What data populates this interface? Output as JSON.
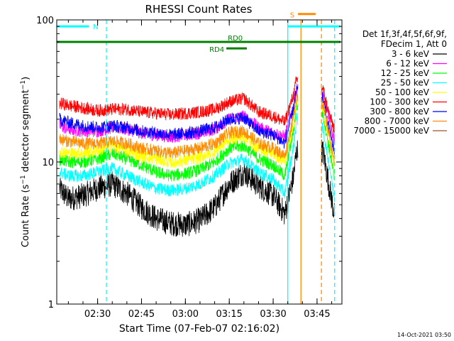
{
  "chart_data": {
    "type": "line",
    "title": "RHESSI Count Rates",
    "xlabel": "Start Time (07-Feb-07 02:16:02)",
    "ylabel": "Count Rate (s⁻¹ detector segment⁻¹)",
    "ylabel_main": "Count Rate (s",
    "ylabel_sup1": "−1",
    "ylabel_mid": " detector segment",
    "ylabel_sup2": "−1",
    "ylabel_end": ")",
    "y_scale": "log",
    "ylim": [
      1,
      100
    ],
    "yticks": [
      {
        "value": 1,
        "label": "1"
      },
      {
        "value": 10,
        "label": "10"
      },
      {
        "value": 100,
        "label": "100"
      }
    ],
    "xlim": [
      "02:16:02",
      "03:53:30"
    ],
    "xticks": [
      "02:30",
      "02:45",
      "03:00",
      "03:15",
      "03:30",
      "03:45"
    ],
    "legend_position": "right",
    "legend_header": [
      "Det 1f,3f,4f,5f,6f,9f,",
      "FDecim 1, Att 0"
    ],
    "footer_timestamp": "14-Oct-2021 03:50",
    "series": [
      {
        "name": "3 - 6 keV",
        "color": "#000000",
        "values": [
          {
            "t": "02:17",
            "v": 6.5
          },
          {
            "t": "02:20",
            "v": 5.5
          },
          {
            "t": "02:25",
            "v": 5.8
          },
          {
            "t": "02:30",
            "v": 6.5
          },
          {
            "t": "02:35",
            "v": 7.0
          },
          {
            "t": "02:40",
            "v": 6.0
          },
          {
            "t": "02:45",
            "v": 4.8
          },
          {
            "t": "02:50",
            "v": 4.0
          },
          {
            "t": "02:55",
            "v": 3.7
          },
          {
            "t": "03:00",
            "v": 3.6
          },
          {
            "t": "03:05",
            "v": 3.9
          },
          {
            "t": "03:10",
            "v": 4.8
          },
          {
            "t": "03:15",
            "v": 7.0
          },
          {
            "t": "03:20",
            "v": 8.5
          },
          {
            "t": "03:25",
            "v": 6.8
          },
          {
            "t": "03:30",
            "v": 5.8
          },
          {
            "t": "03:34",
            "v": 4.3
          },
          {
            "t": "03:37",
            "v": 8.0
          },
          {
            "t": "03:38",
            "v": 12.0
          },
          {
            "t": "03:47",
            "v": 12.0
          },
          {
            "t": "03:49",
            "v": 7.0
          },
          {
            "t": "03:51",
            "v": 4.2
          }
        ]
      },
      {
        "name": "6 - 12 keV",
        "color": "#ff00ff",
        "values": [
          {
            "t": "02:17",
            "v": 18.0
          },
          {
            "t": "02:20",
            "v": 17.0
          },
          {
            "t": "02:25",
            "v": 16.5
          },
          {
            "t": "02:30",
            "v": 16.5
          },
          {
            "t": "02:35",
            "v": 17.5
          },
          {
            "t": "02:40",
            "v": 17.0
          },
          {
            "t": "02:45",
            "v": 16.0
          },
          {
            "t": "02:50",
            "v": 15.5
          },
          {
            "t": "02:55",
            "v": 15.0
          },
          {
            "t": "03:00",
            "v": 15.5
          },
          {
            "t": "03:05",
            "v": 16.0
          },
          {
            "t": "03:10",
            "v": 17.0
          },
          {
            "t": "03:15",
            "v": 20.0
          },
          {
            "t": "03:20",
            "v": 21.0
          },
          {
            "t": "03:25",
            "v": 17.5
          },
          {
            "t": "03:30",
            "v": 16.0
          },
          {
            "t": "03:34",
            "v": 15.0
          },
          {
            "t": "03:37",
            "v": 25.0
          },
          {
            "t": "03:38",
            "v": 33.0
          },
          {
            "t": "03:47",
            "v": 30.0
          },
          {
            "t": "03:49",
            "v": 20.0
          },
          {
            "t": "03:51",
            "v": 14.0
          }
        ]
      },
      {
        "name": "12 - 25 keV",
        "color": "#00ff00",
        "values": [
          {
            "t": "02:17",
            "v": 10.5
          },
          {
            "t": "02:20",
            "v": 10.0
          },
          {
            "t": "02:25",
            "v": 10.0
          },
          {
            "t": "02:30",
            "v": 10.5
          },
          {
            "t": "02:35",
            "v": 11.5
          },
          {
            "t": "02:40",
            "v": 10.5
          },
          {
            "t": "02:45",
            "v": 9.5
          },
          {
            "t": "02:50",
            "v": 8.5
          },
          {
            "t": "02:55",
            "v": 8.0
          },
          {
            "t": "03:00",
            "v": 8.3
          },
          {
            "t": "03:05",
            "v": 8.8
          },
          {
            "t": "03:10",
            "v": 10.0
          },
          {
            "t": "03:15",
            "v": 12.5
          },
          {
            "t": "03:20",
            "v": 13.0
          },
          {
            "t": "03:25",
            "v": 10.5
          },
          {
            "t": "03:30",
            "v": 9.5
          },
          {
            "t": "03:34",
            "v": 8.0
          },
          {
            "t": "03:37",
            "v": 17.0
          },
          {
            "t": "03:38",
            "v": 25.0
          },
          {
            "t": "03:47",
            "v": 22.0
          },
          {
            "t": "03:49",
            "v": 13.0
          },
          {
            "t": "03:51",
            "v": 7.5
          }
        ]
      },
      {
        "name": "25 - 50 keV",
        "color": "#00ffff",
        "values": [
          {
            "t": "02:17",
            "v": 8.5
          },
          {
            "t": "02:20",
            "v": 8.0
          },
          {
            "t": "02:25",
            "v": 8.0
          },
          {
            "t": "02:30",
            "v": 8.5
          },
          {
            "t": "02:35",
            "v": 9.0
          },
          {
            "t": "02:40",
            "v": 8.0
          },
          {
            "t": "02:45",
            "v": 7.2
          },
          {
            "t": "02:50",
            "v": 6.5
          },
          {
            "t": "02:55",
            "v": 6.3
          },
          {
            "t": "03:00",
            "v": 6.5
          },
          {
            "t": "03:05",
            "v": 7.0
          },
          {
            "t": "03:10",
            "v": 8.0
          },
          {
            "t": "03:15",
            "v": 9.8
          },
          {
            "t": "03:20",
            "v": 10.5
          },
          {
            "t": "03:25",
            "v": 8.5
          },
          {
            "t": "03:30",
            "v": 7.5
          },
          {
            "t": "03:34",
            "v": 6.0
          },
          {
            "t": "03:37",
            "v": 13.0
          },
          {
            "t": "03:38",
            "v": 20.0
          },
          {
            "t": "03:47",
            "v": 17.0
          },
          {
            "t": "03:49",
            "v": 10.0
          },
          {
            "t": "03:51",
            "v": 5.5
          }
        ]
      },
      {
        "name": "50 - 100 keV",
        "color": "#ffff00",
        "values": [
          {
            "t": "02:17",
            "v": 12.0
          },
          {
            "t": "02:20",
            "v": 11.5
          },
          {
            "t": "02:25",
            "v": 11.5
          },
          {
            "t": "02:30",
            "v": 12.0
          },
          {
            "t": "02:35",
            "v": 13.0
          },
          {
            "t": "02:40",
            "v": 12.0
          },
          {
            "t": "02:45",
            "v": 11.0
          },
          {
            "t": "02:50",
            "v": 10.5
          },
          {
            "t": "02:55",
            "v": 10.0
          },
          {
            "t": "03:00",
            "v": 10.2
          },
          {
            "t": "03:05",
            "v": 10.8
          },
          {
            "t": "03:10",
            "v": 12.0
          },
          {
            "t": "03:15",
            "v": 14.5
          },
          {
            "t": "03:20",
            "v": 15.0
          },
          {
            "t": "03:25",
            "v": 12.5
          },
          {
            "t": "03:30",
            "v": 11.5
          },
          {
            "t": "03:34",
            "v": 10.0
          },
          {
            "t": "03:37",
            "v": 19.0
          },
          {
            "t": "03:38",
            "v": 27.0
          },
          {
            "t": "03:47",
            "v": 24.0
          },
          {
            "t": "03:49",
            "v": 15.0
          },
          {
            "t": "03:51",
            "v": 9.0
          }
        ]
      },
      {
        "name": "100 - 300 keV",
        "color": "#ff0000",
        "values": [
          {
            "t": "02:17",
            "v": 26.0
          },
          {
            "t": "02:20",
            "v": 25.0
          },
          {
            "t": "02:25",
            "v": 24.0
          },
          {
            "t": "02:30",
            "v": 23.0
          },
          {
            "t": "02:35",
            "v": 23.5
          },
          {
            "t": "02:40",
            "v": 23.5
          },
          {
            "t": "02:45",
            "v": 22.5
          },
          {
            "t": "02:50",
            "v": 22.0
          },
          {
            "t": "02:55",
            "v": 21.5
          },
          {
            "t": "03:00",
            "v": 22.0
          },
          {
            "t": "03:05",
            "v": 22.5
          },
          {
            "t": "03:10",
            "v": 23.5
          },
          {
            "t": "03:15",
            "v": 26.5
          },
          {
            "t": "03:20",
            "v": 28.0
          },
          {
            "t": "03:25",
            "v": 22.5
          },
          {
            "t": "03:30",
            "v": 21.0
          },
          {
            "t": "03:34",
            "v": 19.0
          },
          {
            "t": "03:37",
            "v": 30.0
          },
          {
            "t": "03:38",
            "v": 38.0
          },
          {
            "t": "03:47",
            "v": 33.0
          },
          {
            "t": "03:49",
            "v": 22.0
          },
          {
            "t": "03:51",
            "v": 17.0
          }
        ]
      },
      {
        "name": "300 - 800 keV",
        "color": "#0000ff",
        "values": [
          {
            "t": "02:17",
            "v": 20.0
          },
          {
            "t": "02:20",
            "v": 19.0
          },
          {
            "t": "02:25",
            "v": 18.0
          },
          {
            "t": "02:30",
            "v": 17.5
          },
          {
            "t": "02:35",
            "v": 18.0
          },
          {
            "t": "02:40",
            "v": 17.5
          },
          {
            "t": "02:45",
            "v": 16.5
          },
          {
            "t": "02:50",
            "v": 16.0
          },
          {
            "t": "02:55",
            "v": 15.5
          },
          {
            "t": "03:00",
            "v": 16.0
          },
          {
            "t": "03:05",
            "v": 16.5
          },
          {
            "t": "03:10",
            "v": 17.5
          },
          {
            "t": "03:15",
            "v": 20.0
          },
          {
            "t": "03:20",
            "v": 20.5
          },
          {
            "t": "03:25",
            "v": 16.5
          },
          {
            "t": "03:30",
            "v": 15.5
          },
          {
            "t": "03:34",
            "v": 13.5
          },
          {
            "t": "03:37",
            "v": 24.0
          },
          {
            "t": "03:38",
            "v": 32.0
          },
          {
            "t": "03:47",
            "v": 28.0
          },
          {
            "t": "03:49",
            "v": 17.0
          },
          {
            "t": "03:51",
            "v": 12.0
          }
        ]
      },
      {
        "name": "800 - 7000 keV",
        "color": "#ff8c00",
        "values": [
          {
            "t": "02:17",
            "v": 14.5
          },
          {
            "t": "02:20",
            "v": 14.0
          },
          {
            "t": "02:25",
            "v": 13.5
          },
          {
            "t": "02:30",
            "v": 13.5
          },
          {
            "t": "02:35",
            "v": 14.0
          },
          {
            "t": "02:40",
            "v": 13.5
          },
          {
            "t": "02:45",
            "v": 12.5
          },
          {
            "t": "02:50",
            "v": 12.0
          },
          {
            "t": "02:55",
            "v": 11.5
          },
          {
            "t": "03:00",
            "v": 12.0
          },
          {
            "t": "03:05",
            "v": 12.5
          },
          {
            "t": "03:10",
            "v": 13.5
          },
          {
            "t": "03:15",
            "v": 16.0
          },
          {
            "t": "03:20",
            "v": 16.5
          },
          {
            "t": "03:25",
            "v": 13.5
          },
          {
            "t": "03:30",
            "v": 12.5
          },
          {
            "t": "03:34",
            "v": 11.0
          },
          {
            "t": "03:37",
            "v": 21.0
          },
          {
            "t": "03:38",
            "v": 29.0
          },
          {
            "t": "03:47",
            "v": 26.0
          },
          {
            "t": "03:49",
            "v": 16.0
          },
          {
            "t": "03:51",
            "v": 10.0
          }
        ]
      },
      {
        "name": "7000 - 15000 keV",
        "color": "#a0522d",
        "values": []
      }
    ],
    "overlay_bars": [
      {
        "label": "N",
        "color": "#00ffff",
        "y_level": 90,
        "segments": [
          [
            "02:16:02",
            "02:27:00"
          ],
          [
            "03:35:00",
            "03:53:00"
          ]
        ]
      },
      {
        "label": "RD0",
        "color": "#008000",
        "y_level": 70,
        "segments": [
          [
            "02:16:02",
            "03:53:00"
          ]
        ]
      },
      {
        "label": "RD4",
        "color": "#008000",
        "y_level": 63,
        "segments": [
          [
            "03:14:00",
            "03:21:00"
          ]
        ]
      },
      {
        "label": "S",
        "color": "#ff8c00",
        "y_level": 110,
        "segments": [
          [
            "03:38:30",
            "03:44:30"
          ]
        ]
      }
    ],
    "vertical_lines": [
      {
        "t": "02:33:00",
        "color": "#00ffff",
        "style": "dashed"
      },
      {
        "t": "03:35:00",
        "color": "#00ffff",
        "style": "solid"
      },
      {
        "t": "03:39:30",
        "color": "#ff8c00",
        "style": "solid"
      },
      {
        "t": "03:46:30",
        "color": "#ff8c00",
        "style": "dashed"
      },
      {
        "t": "03:51:00",
        "color": "#00ffff",
        "style": "dashed"
      }
    ]
  }
}
